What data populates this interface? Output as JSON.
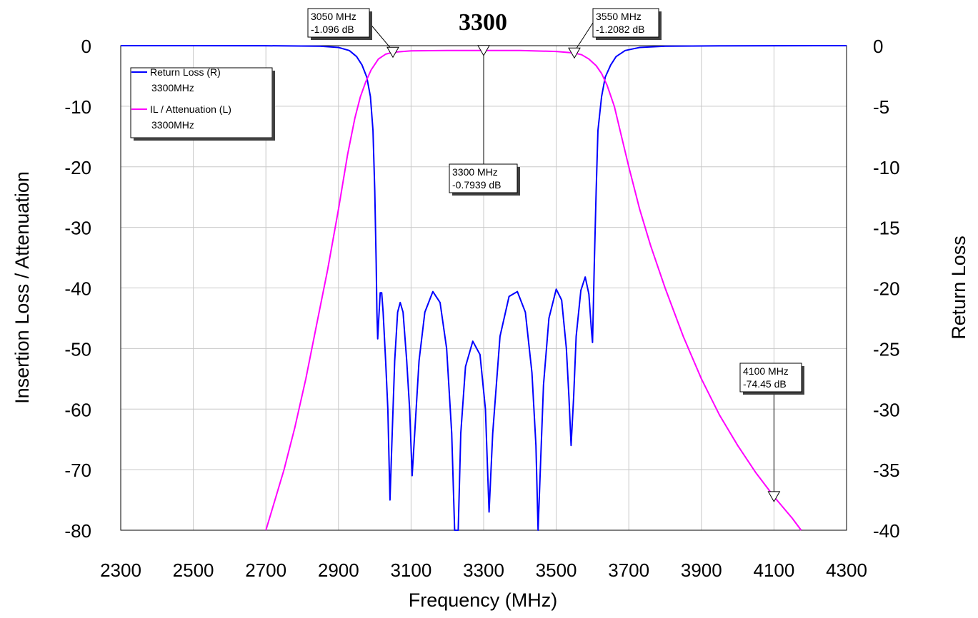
{
  "chart_data": {
    "type": "line",
    "title": "3300",
    "xlabel": "Frequency (MHz)",
    "ylabel_left": "Insertion Loss / Attenuation",
    "ylabel_right": "Return Loss",
    "xlim": [
      2300,
      4300
    ],
    "ylim_left": [
      -80,
      0
    ],
    "ylim_right": [
      -40,
      0
    ],
    "x_ticks": [
      "2300",
      "2500",
      "2700",
      "2900",
      "3100",
      "3300",
      "3500",
      "3700",
      "3900",
      "4100",
      "4300"
    ],
    "y_ticks_left": [
      "0",
      "-10",
      "-20",
      "-30",
      "-40",
      "-50",
      "-60",
      "-70",
      "-80"
    ],
    "y_ticks_right": [
      "0",
      "-5",
      "-10",
      "-15",
      "-20",
      "-25",
      "-30",
      "-35",
      "-40"
    ],
    "grid": true,
    "legend_position": "top-left",
    "series": [
      {
        "name": "Return Loss (R)",
        "sublabel": "3300MHz",
        "axis": "right",
        "color": "#0000ff",
        "points": [
          [
            2300,
            0
          ],
          [
            2700,
            -0.005
          ],
          [
            2850,
            -0.05
          ],
          [
            2900,
            -0.15
          ],
          [
            2930,
            -0.4
          ],
          [
            2950,
            -0.9
          ],
          [
            2965,
            -1.6
          ],
          [
            2978,
            -2.6
          ],
          [
            2988,
            -4.2
          ],
          [
            2995,
            -7
          ],
          [
            3000,
            -12
          ],
          [
            3004,
            -18
          ],
          [
            3006,
            -22
          ],
          [
            3008,
            -24.2
          ],
          [
            3011,
            -22.5
          ],
          [
            3015,
            -20.4
          ],
          [
            3019,
            -20.4
          ],
          [
            3023,
            -22
          ],
          [
            3030,
            -26
          ],
          [
            3036,
            -30
          ],
          [
            3042,
            -37.5
          ],
          [
            3048,
            -32
          ],
          [
            3055,
            -26
          ],
          [
            3063,
            -22
          ],
          [
            3070,
            -21.2
          ],
          [
            3078,
            -22
          ],
          [
            3088,
            -26
          ],
          [
            3096,
            -30
          ],
          [
            3103,
            -35.5
          ],
          [
            3110,
            -32
          ],
          [
            3122,
            -26
          ],
          [
            3138,
            -22
          ],
          [
            3160,
            -20.3
          ],
          [
            3180,
            -21.2
          ],
          [
            3198,
            -25
          ],
          [
            3212,
            -32
          ],
          [
            3220,
            -40
          ],
          [
            3230,
            -40
          ],
          [
            3237,
            -32
          ],
          [
            3250,
            -26.5
          ],
          [
            3270,
            -24.4
          ],
          [
            3290,
            -25.5
          ],
          [
            3305,
            -30
          ],
          [
            3315,
            -38.5
          ],
          [
            3325,
            -32
          ],
          [
            3345,
            -24
          ],
          [
            3370,
            -20.7
          ],
          [
            3393,
            -20.3
          ],
          [
            3415,
            -22
          ],
          [
            3433,
            -27
          ],
          [
            3444,
            -33
          ],
          [
            3450,
            -40
          ],
          [
            3455,
            -36
          ],
          [
            3465,
            -28
          ],
          [
            3480,
            -22.5
          ],
          [
            3500,
            -20.1
          ],
          [
            3515,
            -21
          ],
          [
            3528,
            -25
          ],
          [
            3535,
            -29
          ],
          [
            3541,
            -33
          ],
          [
            3548,
            -29
          ],
          [
            3555,
            -24
          ],
          [
            3568,
            -20.2
          ],
          [
            3580,
            -19.1
          ],
          [
            3590,
            -20.5
          ],
          [
            3597,
            -23.5
          ],
          [
            3600,
            -24.5
          ],
          [
            3602,
            -22
          ],
          [
            3605,
            -18
          ],
          [
            3610,
            -12
          ],
          [
            3615,
            -7
          ],
          [
            3625,
            -4.2
          ],
          [
            3635,
            -2.6
          ],
          [
            3650,
            -1.6
          ],
          [
            3665,
            -0.9
          ],
          [
            3690,
            -0.4
          ],
          [
            3730,
            -0.15
          ],
          [
            3800,
            -0.05
          ],
          [
            3950,
            -0.01
          ],
          [
            4300,
            0
          ]
        ]
      },
      {
        "name": "IL / Attenuation (L)",
        "sublabel": "3300MHz",
        "axis": "left",
        "color": "#ff00ff",
        "points": [
          [
            2700,
            -80
          ],
          [
            2720,
            -76
          ],
          [
            2750,
            -70
          ],
          [
            2780,
            -63
          ],
          [
            2810,
            -55
          ],
          [
            2840,
            -46
          ],
          [
            2870,
            -37
          ],
          [
            2900,
            -27
          ],
          [
            2925,
            -18
          ],
          [
            2945,
            -12
          ],
          [
            2960,
            -8.5
          ],
          [
            2975,
            -6
          ],
          [
            2990,
            -4
          ],
          [
            3010,
            -2.2
          ],
          [
            3030,
            -1.4
          ],
          [
            3050,
            -1.096
          ],
          [
            3100,
            -0.85
          ],
          [
            3200,
            -0.8
          ],
          [
            3300,
            -0.7939
          ],
          [
            3400,
            -0.8
          ],
          [
            3500,
            -0.95
          ],
          [
            3550,
            -1.2082
          ],
          [
            3570,
            -1.5
          ],
          [
            3590,
            -2.2
          ],
          [
            3610,
            -3.3
          ],
          [
            3625,
            -4.6
          ],
          [
            3640,
            -6.5
          ],
          [
            3660,
            -10
          ],
          [
            3680,
            -15
          ],
          [
            3700,
            -20
          ],
          [
            3730,
            -27
          ],
          [
            3760,
            -33
          ],
          [
            3800,
            -40
          ],
          [
            3850,
            -48
          ],
          [
            3900,
            -55
          ],
          [
            3950,
            -61
          ],
          [
            4000,
            -66
          ],
          [
            4050,
            -70.5
          ],
          [
            4100,
            -74.45
          ],
          [
            4150,
            -78
          ],
          [
            4175,
            -80
          ]
        ]
      }
    ],
    "markers": [
      {
        "series": 1,
        "x": 3050,
        "y": -1.096,
        "label1": "3050 MHz",
        "label2": "-1.096 dB"
      },
      {
        "series": 1,
        "x": 3300,
        "y": -0.7939,
        "label1": "3300 MHz",
        "label2": "-0.7939 dB"
      },
      {
        "series": 1,
        "x": 3550,
        "y": -1.2082,
        "label1": "3550 MHz",
        "label2": "-1.2082 dB"
      },
      {
        "series": 1,
        "x": 4100,
        "y": -74.45,
        "label1": "4100 MHz",
        "label2": "-74.45 dB"
      }
    ]
  }
}
